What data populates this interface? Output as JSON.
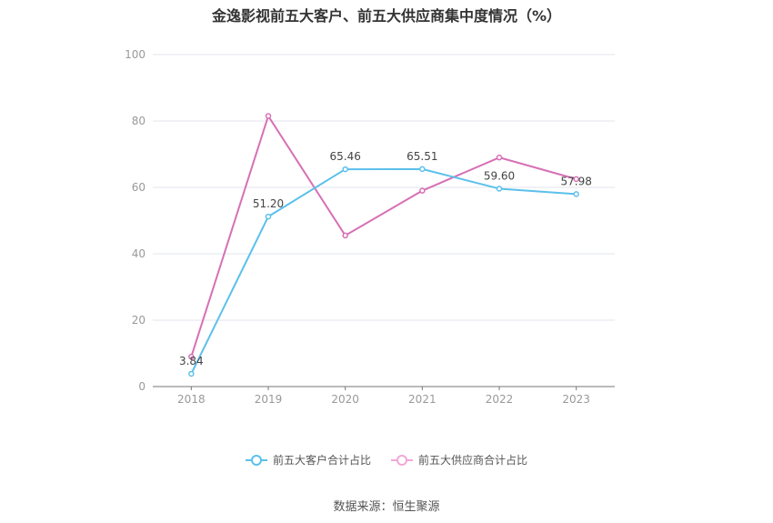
{
  "chart_data": {
    "type": "line",
    "title": "金逸影视前五大客户、前五大供应商集中度情况（%）",
    "categories": [
      "2018",
      "2019",
      "2020",
      "2021",
      "2022",
      "2023"
    ],
    "ylim": [
      0,
      100
    ],
    "yticks": [
      "0",
      "20",
      "40",
      "60",
      "80",
      "100"
    ],
    "grid": true,
    "legend_position": "bottom",
    "series": [
      {
        "name": "前五大客户合计占比",
        "color": "#5bc0eb",
        "values": [
          3.84,
          51.2,
          65.46,
          65.51,
          59.6,
          57.98
        ],
        "labels": [
          "3.84",
          "51.20",
          "65.46",
          "65.51",
          "59.60",
          "57.98"
        ]
      },
      {
        "name": "前五大供应商合计占比",
        "color": "#d770b5",
        "values": [
          9.0,
          81.5,
          45.5,
          59.0,
          69.0,
          62.5
        ]
      }
    ]
  },
  "source": "数据来源：恒生聚源"
}
